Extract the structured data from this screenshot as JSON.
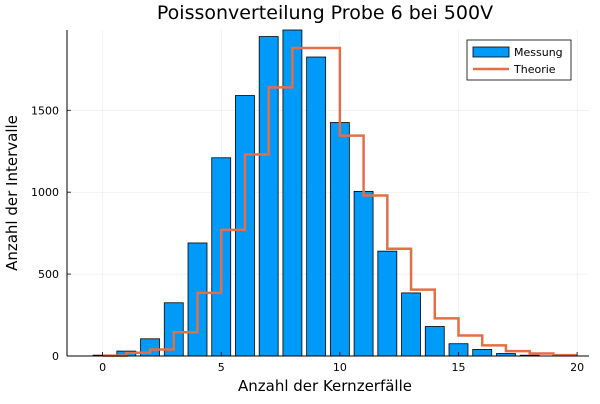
{
  "chart_data": {
    "type": "bar",
    "title": "Poissonverteilung Probe 6 bei 500V",
    "xlabel": "Anzahl der Kernzerfälle",
    "ylabel": "Anzahl der Intervalle",
    "xlim": [
      -1.5,
      20.5
    ],
    "ylim": [
      0,
      1990
    ],
    "xticks": [
      0,
      5,
      10,
      15,
      20
    ],
    "yticks": [
      0,
      500,
      1000,
      1500
    ],
    "grid": true,
    "legend_position": "top-right",
    "series": [
      {
        "name": "Messung",
        "kind": "bar",
        "color": "#009af9",
        "x": [
          0,
          1,
          2,
          3,
          4,
          5,
          6,
          7,
          8,
          9,
          10,
          11,
          12,
          13,
          14,
          15,
          16,
          17,
          18,
          19
        ],
        "values": [
          5,
          30,
          105,
          325,
          690,
          1210,
          1590,
          1950,
          1990,
          1825,
          1425,
          1005,
          640,
          385,
          180,
          75,
          40,
          15,
          5,
          0
        ]
      },
      {
        "name": "Theorie",
        "kind": "step",
        "color": "#e26f46",
        "x": [
          0,
          1,
          2,
          3,
          4,
          5,
          6,
          7,
          8,
          9,
          10,
          11,
          12,
          13,
          14,
          15,
          16,
          17,
          18,
          19
        ],
        "values": [
          2,
          20,
          40,
          145,
          385,
          770,
          1230,
          1640,
          1880,
          1880,
          1345,
          980,
          655,
          405,
          230,
          125,
          65,
          30,
          15,
          5
        ]
      }
    ]
  }
}
